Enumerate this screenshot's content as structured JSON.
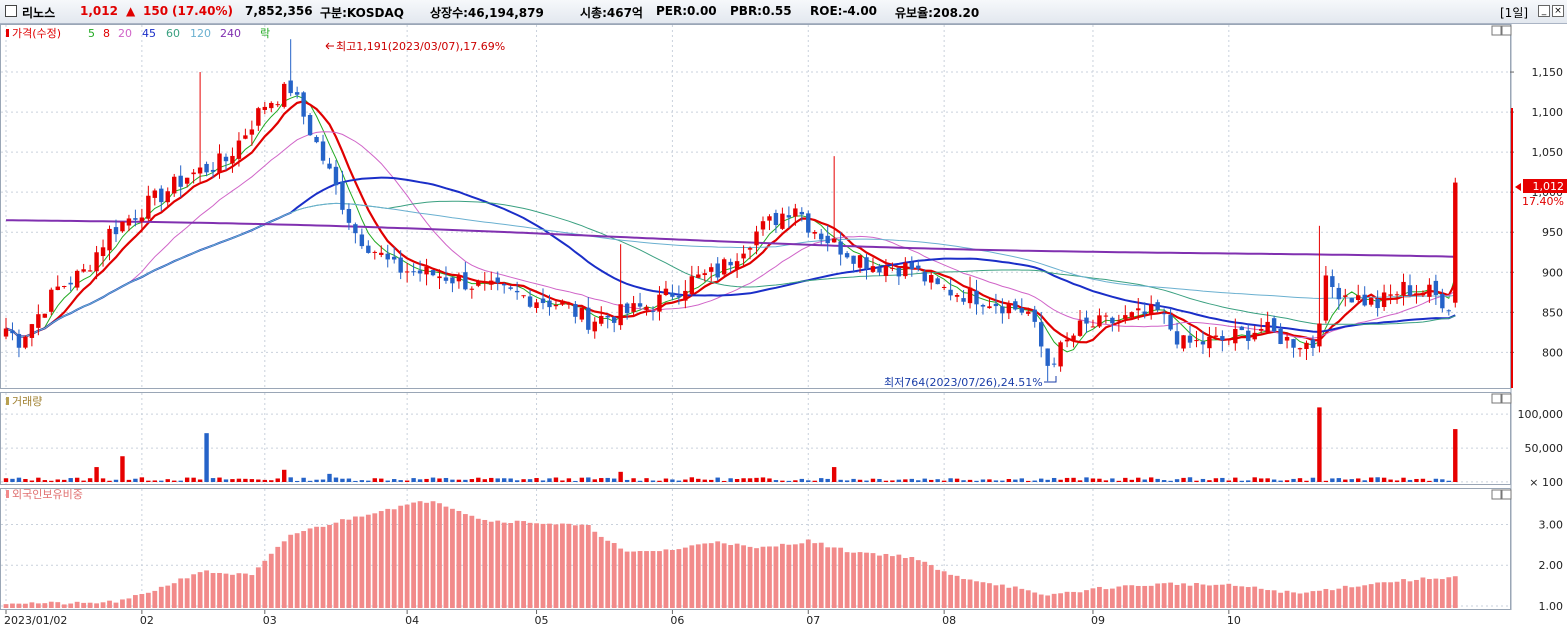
{
  "header": {
    "name": "리노스",
    "price": "1,012",
    "change_arrow": "▲",
    "change": "150",
    "change_pct": "(17.40%)",
    "volume": "7,852,356",
    "market": "구분:KOSDAQ",
    "shares": "상장수:46,194,879",
    "mktcap": "시총:467억",
    "per": "PER:0.00",
    "pbr": "PBR:0.55",
    "roe": "ROE:-4.00",
    "reserve": "유보율:208.20",
    "period": "[1일]",
    "min_icon": "minimize-icon",
    "close_icon": "close-icon"
  },
  "colors": {
    "up": "#e60000",
    "down": "#2563c8",
    "ma5": "#22aa22",
    "ma8": "#e00000",
    "ma20": "#d064c8",
    "ma45": "#1a2ec8",
    "ma60": "#3aa080",
    "ma120": "#6ab0d0",
    "ma240": "#8030b0",
    "volume_up": "#e60000",
    "volume_down": "#2563c8",
    "foreign": "#f28a8a",
    "grid": "#c9d1dc"
  },
  "chart_data": [
    {
      "type": "candlestick",
      "legend": {
        "price": "가격(수정)",
        "ma": [
          "5",
          "8",
          "20",
          "45",
          "60",
          "120",
          "240"
        ],
        "extra": "락"
      },
      "x_ticks": [
        "2023/01/02",
        "02",
        "03",
        "04",
        "05",
        "06",
        "07",
        "08",
        "09",
        "10"
      ],
      "y_ticks": [
        "1,150",
        "1,100",
        "1,050",
        "1,000",
        "950",
        "900",
        "850",
        "800"
      ],
      "ylim": [
        758,
        1200
      ],
      "max_label": "최고1,191(2023/03/07),17.69%",
      "min_label": "최저764(2023/07/26),24.51%",
      "current_price": "1,012",
      "current_change": "17.40%",
      "anchors": [
        [
          0,
          830
        ],
        [
          2,
          815
        ],
        [
          8,
          880
        ],
        [
          12,
          900
        ],
        [
          16,
          950
        ],
        [
          22,
          985
        ],
        [
          28,
          1020
        ],
        [
          34,
          1040
        ],
        [
          40,
          1110
        ],
        [
          44,
          1130
        ],
        [
          48,
          1060
        ],
        [
          54,
          950
        ],
        [
          60,
          905
        ],
        [
          68,
          895
        ],
        [
          74,
          880
        ],
        [
          80,
          870
        ],
        [
          86,
          860
        ],
        [
          90,
          840
        ],
        [
          96,
          850
        ],
        [
          100,
          860
        ],
        [
          106,
          890
        ],
        [
          110,
          900
        ],
        [
          116,
          950
        ],
        [
          122,
          985
        ],
        [
          124,
          960
        ],
        [
          128,
          935
        ],
        [
          134,
          910
        ],
        [
          140,
          905
        ],
        [
          144,
          880
        ],
        [
          150,
          870
        ],
        [
          154,
          860
        ],
        [
          158,
          850
        ],
        [
          161,
          785
        ],
        [
          166,
          830
        ],
        [
          172,
          840
        ],
        [
          178,
          850
        ],
        [
          182,
          810
        ],
        [
          188,
          815
        ],
        [
          194,
          830
        ],
        [
          198,
          815
        ],
        [
          202,
          810
        ],
        [
          204,
          885
        ],
        [
          208,
          870
        ],
        [
          212,
          860
        ],
        [
          216,
          880
        ],
        [
          220,
          875
        ],
        [
          223,
          860
        ],
        [
          224,
          1012
        ]
      ]
    },
    {
      "type": "bar",
      "legend": "거래량",
      "y_ticks": [
        "100,000",
        "50,000",
        "100"
      ],
      "ylim": [
        0,
        115000
      ],
      "spikes": [
        [
          14,
          22000
        ],
        [
          18,
          38000
        ],
        [
          31,
          72000
        ],
        [
          43,
          18000
        ],
        [
          50,
          12000
        ],
        [
          95,
          15000
        ],
        [
          128,
          22000
        ],
        [
          203,
          110000
        ],
        [
          224,
          78000
        ]
      ]
    },
    {
      "type": "bar",
      "legend": "외국인보유비중",
      "y_ticks": [
        "3.00",
        "2.00",
        "1.00"
      ],
      "ylim": [
        0.95,
        3.6
      ],
      "anchors": [
        [
          0,
          1.08
        ],
        [
          12,
          1.06
        ],
        [
          18,
          1.12
        ],
        [
          24,
          1.45
        ],
        [
          30,
          1.85
        ],
        [
          38,
          1.75
        ],
        [
          44,
          2.75
        ],
        [
          52,
          3.1
        ],
        [
          58,
          3.35
        ],
        [
          66,
          3.6
        ],
        [
          74,
          3.1
        ],
        [
          82,
          3.05
        ],
        [
          90,
          2.95
        ],
        [
          96,
          2.3
        ],
        [
          104,
          2.4
        ],
        [
          110,
          2.6
        ],
        [
          116,
          2.4
        ],
        [
          124,
          2.6
        ],
        [
          130,
          2.35
        ],
        [
          140,
          2.2
        ],
        [
          146,
          1.75
        ],
        [
          156,
          1.45
        ],
        [
          160,
          1.25
        ],
        [
          170,
          1.45
        ],
        [
          180,
          1.55
        ],
        [
          190,
          1.5
        ],
        [
          200,
          1.3
        ],
        [
          206,
          1.45
        ],
        [
          214,
          1.6
        ],
        [
          224,
          1.72
        ]
      ]
    }
  ]
}
